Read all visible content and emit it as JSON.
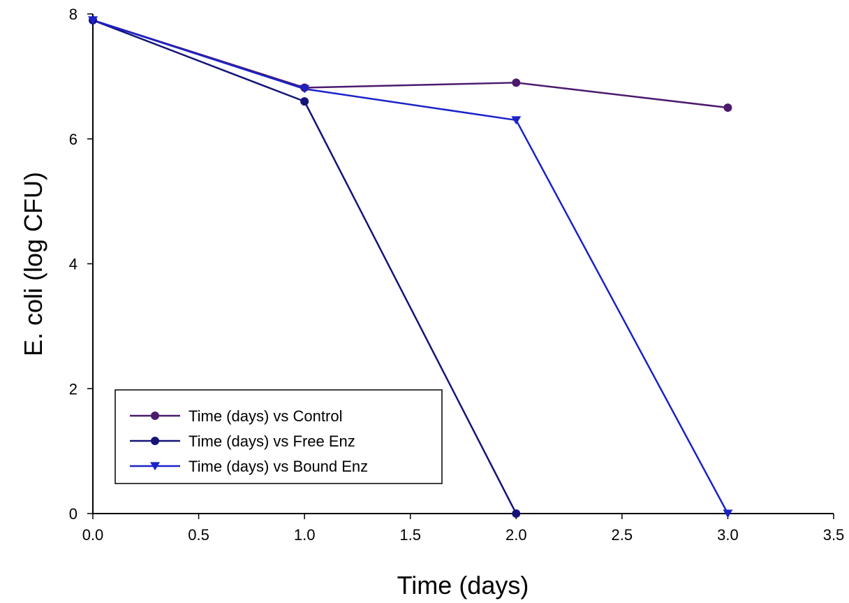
{
  "chart_data": {
    "type": "line",
    "xlabel": "Time (days)",
    "ylabel": "E. coli (log CFU)",
    "xlim": [
      0,
      3.5
    ],
    "ylim": [
      0,
      8
    ],
    "x_ticks": [
      "0.0",
      "0.5",
      "1.0",
      "1.5",
      "2.0",
      "2.5",
      "3.0",
      "3.5"
    ],
    "y_ticks": [
      "0",
      "2",
      "4",
      "6",
      "8"
    ],
    "grid": false,
    "legend_position": "bottom-left",
    "series": [
      {
        "name": "Time (days) vs Control",
        "color": "#4b1a6e",
        "marker": "circle",
        "x": [
          0,
          1,
          2,
          3
        ],
        "values": [
          7.9,
          6.82,
          6.9,
          6.5
        ]
      },
      {
        "name": "Time (days) vs Free Enz",
        "color": "#141478",
        "marker": "circle",
        "x": [
          0,
          1,
          2
        ],
        "values": [
          7.9,
          6.6,
          0
        ]
      },
      {
        "name": "Time (days) vs Bound Enz",
        "color": "#1a22c8",
        "marker": "triangle-down",
        "x": [
          0,
          1,
          2,
          3
        ],
        "values": [
          7.9,
          6.8,
          6.3,
          0
        ]
      }
    ]
  }
}
